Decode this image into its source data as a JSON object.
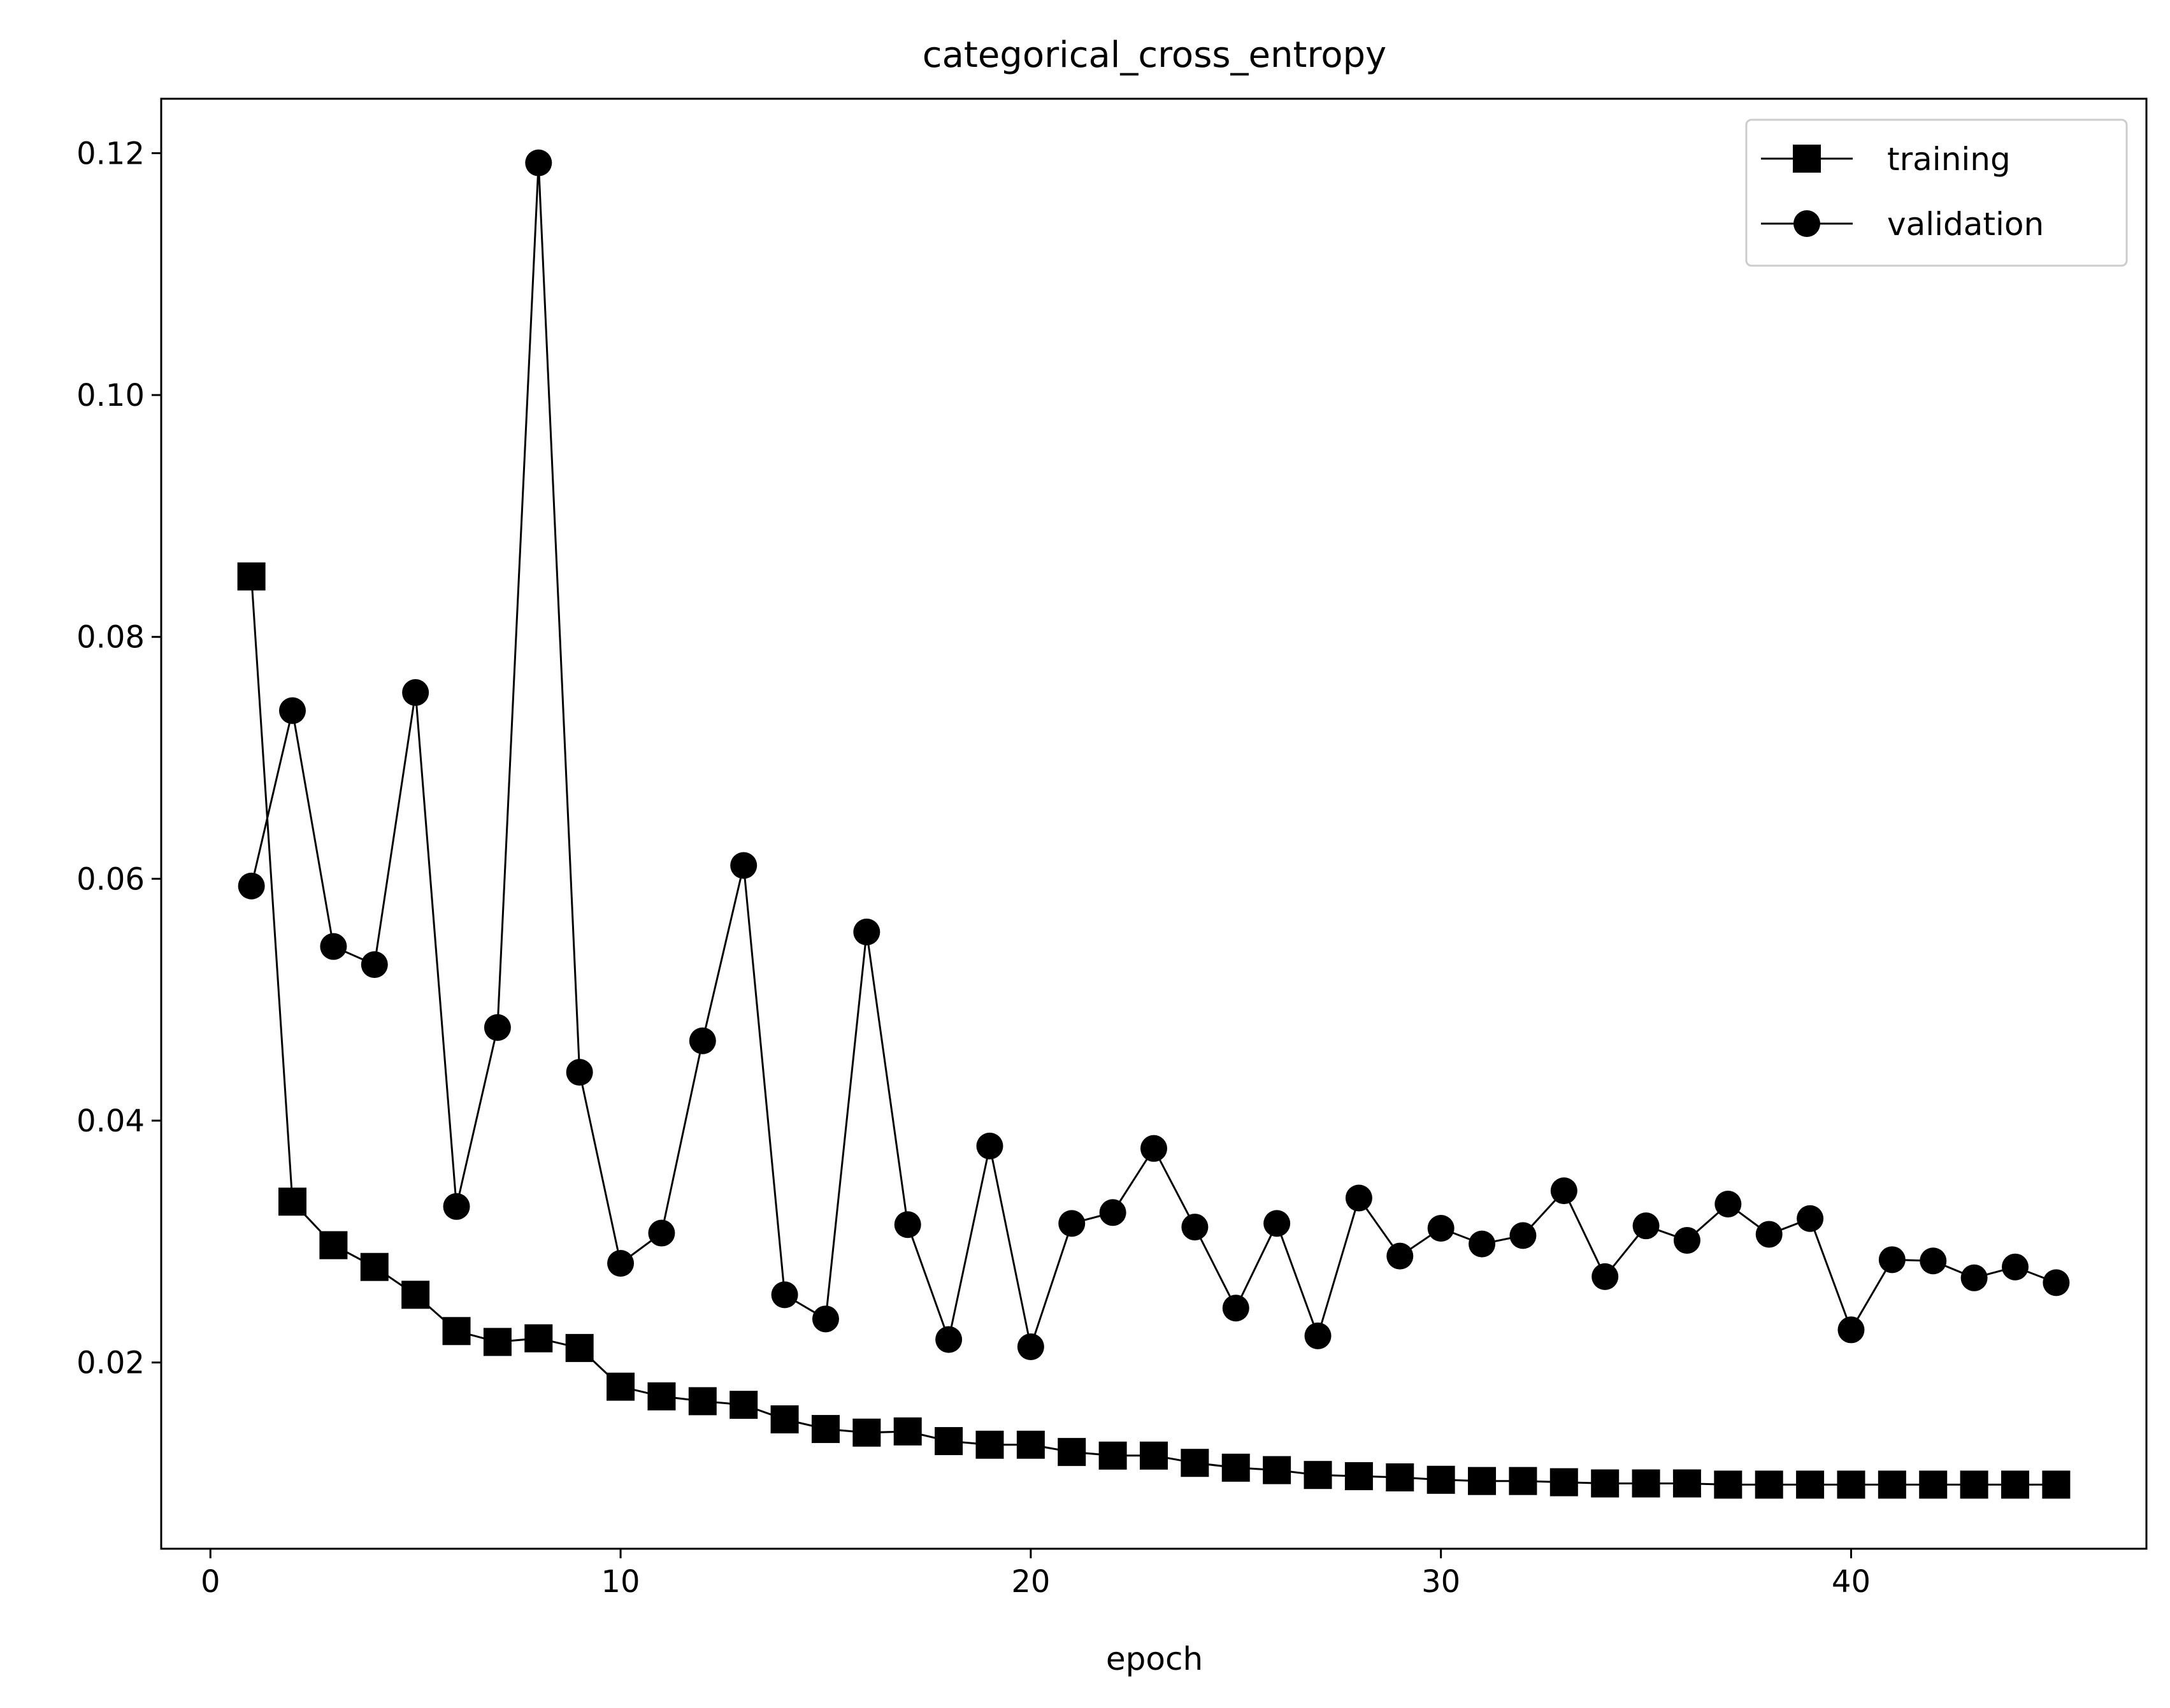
{
  "chart_data": {
    "type": "line",
    "title": "categorical_cross_entropy",
    "xlabel": "epoch",
    "ylabel": "",
    "xlim": [
      -1.2,
      47.2
    ],
    "ylim": [
      0.0046,
      0.1245
    ],
    "xticks": [
      0,
      10,
      20,
      30,
      40
    ],
    "yticks": [
      0.02,
      0.04,
      0.06,
      0.08,
      0.1,
      0.12
    ],
    "ytick_labels": [
      "0.02",
      "0.04",
      "0.06",
      "0.08",
      "0.10",
      "0.12"
    ],
    "grid": false,
    "legend_position": "top-right",
    "x": [
      1,
      2,
      3,
      4,
      5,
      6,
      7,
      8,
      9,
      10,
      11,
      12,
      13,
      14,
      15,
      16,
      17,
      18,
      19,
      20,
      21,
      22,
      23,
      24,
      25,
      26,
      27,
      28,
      29,
      30,
      31,
      32,
      33,
      34,
      35,
      36,
      37,
      38,
      39,
      40,
      41,
      42,
      43,
      44,
      45
    ],
    "series": [
      {
        "name": "training",
        "marker": "square",
        "color": "#000000",
        "values": [
          0.085,
          0.0333,
          0.0297,
          0.0279,
          0.0256,
          0.0226,
          0.0217,
          0.022,
          0.0212,
          0.018,
          0.0172,
          0.0168,
          0.0165,
          0.0153,
          0.0145,
          0.0142,
          0.0143,
          0.0135,
          0.0132,
          0.0132,
          0.0126,
          0.0123,
          0.0123,
          0.0117,
          0.0113,
          0.0111,
          0.0107,
          0.0106,
          0.0105,
          0.0103,
          0.0102,
          0.0102,
          0.0101,
          0.01,
          0.01,
          0.01,
          0.0099,
          0.0099,
          0.0099,
          0.0099,
          0.0099,
          0.0099,
          0.0099,
          0.0099,
          0.0099
        ]
      },
      {
        "name": "validation",
        "marker": "circle",
        "color": "#000000",
        "values": [
          0.0594,
          0.0739,
          0.0544,
          0.0529,
          0.0754,
          0.0329,
          0.0477,
          0.1192,
          0.044,
          0.0282,
          0.0307,
          0.0466,
          0.0611,
          0.0256,
          0.0236,
          0.0556,
          0.0314,
          0.0219,
          0.0379,
          0.0213,
          0.0315,
          0.0324,
          0.0377,
          0.0312,
          0.0245,
          0.0315,
          0.0222,
          0.0336,
          0.0288,
          0.0311,
          0.0298,
          0.0305,
          0.0342,
          0.0271,
          0.0313,
          0.0301,
          0.0331,
          0.0306,
          0.0319,
          0.0227,
          0.0285,
          0.0284,
          0.027,
          0.0279,
          0.0266
        ]
      }
    ]
  }
}
